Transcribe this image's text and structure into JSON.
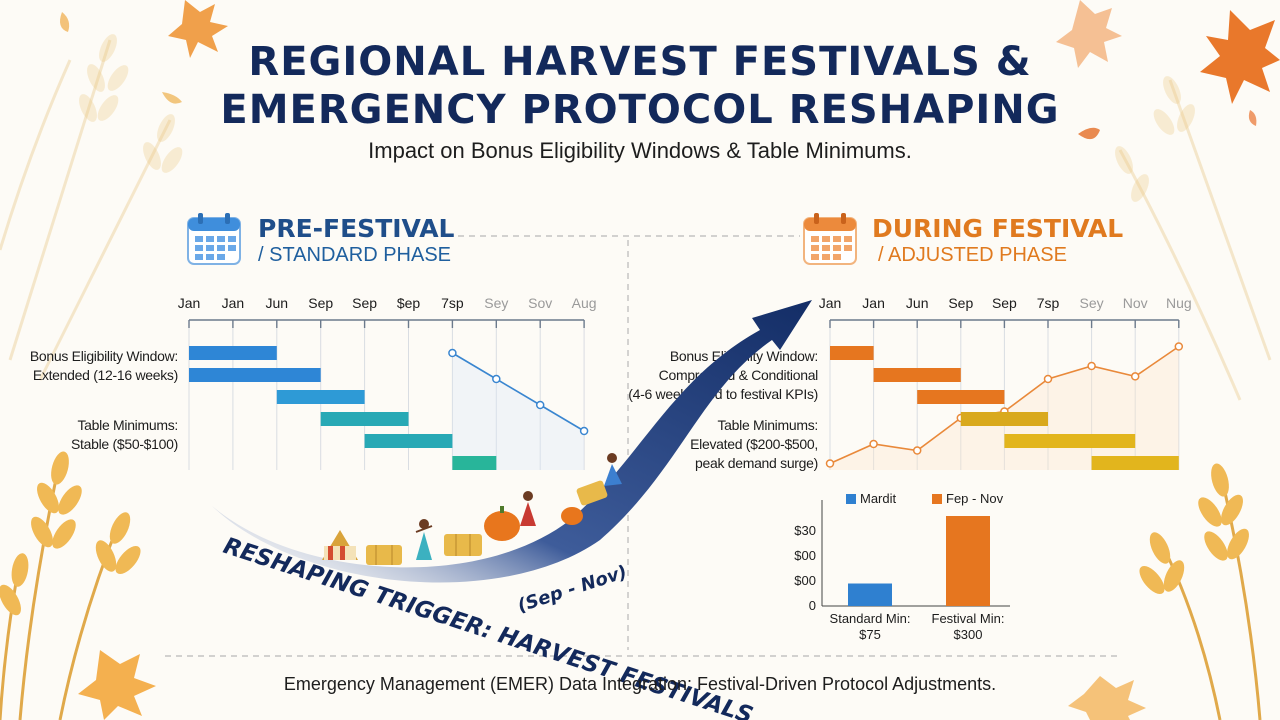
{
  "header": {
    "title_line1": "REGIONAL HARVEST FESTIVALS &",
    "title_line2": "EMERGENCY PROTOCOL RESHAPING",
    "subtitle": "Impact on Bonus Eligibility Windows & Table Minimums."
  },
  "pre_phase": {
    "title": "PRE-FESTIVAL",
    "subtitle": "/ STANDARD PHASE",
    "accent": "#1f4e8a",
    "icon": "calendar-icon",
    "bonus_label_1": "Bonus Eligibility Window:",
    "bonus_label_2": "Extended (12-16 weeks)",
    "table_label_1": "Table Minimums:",
    "table_label_2": "Stable ($50-$100)"
  },
  "during_phase": {
    "title": "DURING FESTIVAL",
    "subtitle": "/ ADJUSTED PHASE",
    "accent": "#e07a1f",
    "icon": "calendar-icon",
    "bonus_label_1": "Bonus Eligibility Window:",
    "bonus_label_2": "Compressed & Conditional",
    "bonus_label_3": "(4-6 weeks, tied to festival KPIs)",
    "table_label_1": "Table Minimums:",
    "table_label_2": "Elevated ($200-$500,",
    "table_label_3": "peak demand surge)"
  },
  "trigger": {
    "line1": "RESHAPING TRIGGER: HARVEST FESTIVALS",
    "line2": "(Sep - Nov)"
  },
  "footer": {
    "text": "Emergency Management (EMER) Data Integration: Festival-Driven Protocol Adjustments."
  },
  "chart_data": [
    {
      "type": "bar",
      "name": "pre-festival-gantt",
      "categories": [
        "Jan",
        "Jan",
        "Jun",
        "Sep",
        "Sep",
        "$ep",
        "7sp",
        "Sey",
        "Sov",
        "Aug"
      ],
      "bars": [
        {
          "start": 0,
          "end": 2,
          "color": "#2e86d6"
        },
        {
          "start": 0,
          "end": 3,
          "color": "#2e86d6"
        },
        {
          "start": 2,
          "end": 4,
          "color": "#2e9ad6"
        },
        {
          "start": 3,
          "end": 5,
          "color": "#28a9b5"
        },
        {
          "start": 4,
          "end": 6,
          "color": "#28a9b5"
        },
        {
          "start": 6,
          "end": 7,
          "color": "#28b59a"
        }
      ],
      "trend_line": {
        "x": [
          6,
          7,
          8,
          9
        ],
        "y": [
          0.9,
          0.7,
          0.5,
          0.3
        ],
        "color": "#3a86d0"
      },
      "colors": {
        "bar": "#2e86d6",
        "line": "#3a86d0"
      }
    },
    {
      "type": "bar",
      "name": "during-festival-gantt",
      "categories": [
        "Jan",
        "Jan",
        "Jun",
        "Sep",
        "Sep",
        "7sp",
        "Sey",
        "Nov",
        "Nug"
      ],
      "bars": [
        {
          "start": 0,
          "end": 1,
          "color": "#e6761f"
        },
        {
          "start": 1,
          "end": 3,
          "color": "#e6761f"
        },
        {
          "start": 2,
          "end": 4,
          "color": "#e6761f"
        },
        {
          "start": 3,
          "end": 5,
          "color": "#d9a91d"
        },
        {
          "start": 4,
          "end": 7,
          "color": "#e2b51d"
        },
        {
          "start": 6,
          "end": 8,
          "color": "#e2b51d"
        }
      ],
      "trend_line": {
        "x": [
          0,
          1,
          2,
          3,
          4,
          5,
          6,
          7,
          8
        ],
        "y": [
          0.05,
          0.2,
          0.15,
          0.4,
          0.45,
          0.7,
          0.8,
          0.72,
          0.95
        ],
        "color": "#e9893a"
      },
      "colors": {
        "bar": "#e6761f",
        "line": "#e9893a"
      }
    },
    {
      "type": "bar",
      "name": "table-minimum-comparison",
      "categories": [
        "Standard Min:\n$75",
        "Festival Min:\n$300"
      ],
      "category_lines": [
        [
          "Standard Min:",
          "$75"
        ],
        [
          "Festival Min:",
          "$300"
        ]
      ],
      "values": [
        75,
        300
      ],
      "colors": [
        "#2f80d0",
        "#e6761f"
      ],
      "legend": [
        "Mardit",
        "Fep - Nov"
      ],
      "y_tick_labels": [
        "$30",
        "$00",
        "$00",
        "0"
      ],
      "ylim": [
        0,
        350
      ],
      "legend_position": "top"
    }
  ]
}
